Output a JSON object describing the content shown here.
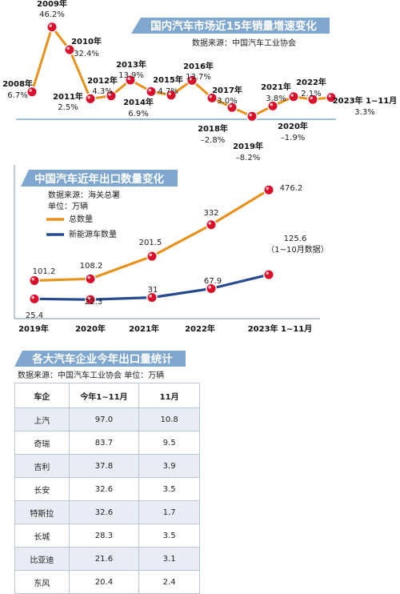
{
  "colors": {
    "accent_blue": "#7fa7cf",
    "orange": "#e6921c",
    "navy": "#264a8f",
    "dot_red": "#d8102c",
    "line_blue": "#3a62a6"
  },
  "chart_data": [
    {
      "type": "line",
      "title": "国内汽车市场近15年销量增速变化",
      "source": "数据来源：中国汽车工业协会",
      "unit_suffix": "%",
      "points": [
        {
          "year": "2008年",
          "value": 6.7,
          "label": "6.7%"
        },
        {
          "year": "2009年",
          "value": 46.2,
          "label": "46.2%"
        },
        {
          "year": "2010年",
          "value": 32.4,
          "label": "32.4%"
        },
        {
          "year": "2011年",
          "value": 2.5,
          "label": "2.5%"
        },
        {
          "year": "2012年",
          "value": 4.3,
          "label": "4.3%"
        },
        {
          "year": "2013年",
          "value": 13.9,
          "label": "13.9%"
        },
        {
          "year": "2014年",
          "value": 6.9,
          "label": "6.9%"
        },
        {
          "year": "2015年",
          "value": 4.7,
          "label": "4.7%"
        },
        {
          "year": "2016年",
          "value": 13.7,
          "label": "13.7%"
        },
        {
          "year": "2017年",
          "value": 3.0,
          "label": "3.0%"
        },
        {
          "year": "2018年",
          "value": -2.8,
          "label": "–2.8%"
        },
        {
          "year": "2019年",
          "value": -8.2,
          "label": "–8.2%"
        },
        {
          "year": "2020年",
          "value": -1.9,
          "label": "–1.9%"
        },
        {
          "year": "2021年",
          "value": 3.8,
          "label": "3.8%"
        },
        {
          "year": "2022年",
          "value": 2.1,
          "label": "2.1%"
        },
        {
          "year": "2023年 1~11月",
          "value": 3.3,
          "label": "3.3%"
        }
      ],
      "grid": false
    },
    {
      "type": "line",
      "title": "中国汽车近年出口数量变化",
      "source": "数据来源：海关总署",
      "unit": "单位：万辆",
      "categories": [
        "2019年",
        "2020年",
        "2021年",
        "2022年",
        "2023年 1~11月"
      ],
      "series": [
        {
          "name": "总数量",
          "values": [
            101.2,
            108.2,
            201.5,
            332,
            476.2
          ],
          "labels": [
            "101.2",
            "108.2",
            "201.5",
            "332",
            "476.2"
          ]
        },
        {
          "name": "新能源车数量",
          "values": [
            25.4,
            22.3,
            31,
            67.9,
            125.6
          ],
          "labels": [
            "25.4",
            "22.3",
            "31",
            "67.9",
            "125.6"
          ]
        }
      ],
      "note": "（1~10月数据）",
      "legend": "top-left"
    },
    {
      "type": "table",
      "title": "各大汽车企业今年出口量统计",
      "source": "数据来源：中国汽车工业协会  单位：万辆",
      "columns": [
        "车企",
        "今年1~11月",
        "11月"
      ],
      "rows": [
        [
          "上汽",
          "97.0",
          "10.8"
        ],
        [
          "奇瑞",
          "83.7",
          "9.5"
        ],
        [
          "吉利",
          "37.8",
          "3.9"
        ],
        [
          "长安",
          "32.6",
          "3.5"
        ],
        [
          "特斯拉",
          "32.6",
          "1.7"
        ],
        [
          "长城",
          "28.3",
          "3.5"
        ],
        [
          "比亚迪",
          "21.6",
          "3.1"
        ],
        [
          "东风",
          "20.4",
          "2.4"
        ]
      ]
    }
  ]
}
